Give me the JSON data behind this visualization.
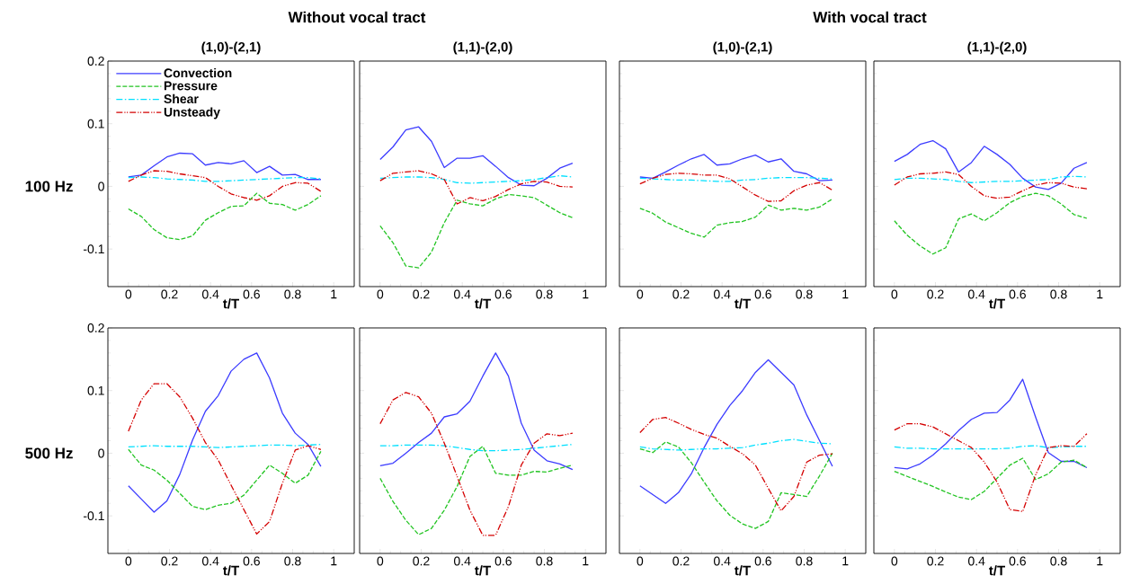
{
  "chart_data": [
    {
      "type": "line",
      "title": "(1,0)-(2,1)",
      "xlabel": "t/T",
      "ylabel": "100 Hz",
      "annotations": [
        "Without vocal tract"
      ],
      "legend": "top left",
      "xlim": [
        -0.1,
        1.1
      ],
      "ylim": [
        -0.16,
        0.2
      ],
      "xticks": [
        0,
        0.2,
        0.4,
        0.6,
        0.8,
        1
      ],
      "yticks": [
        -0.1,
        0,
        0.1,
        0.2
      ],
      "x": [
        0,
        0.0625,
        0.125,
        0.1875,
        0.25,
        0.3125,
        0.375,
        0.4375,
        0.5,
        0.5625,
        0.625,
        0.6875,
        0.75,
        0.8125,
        0.875,
        0.9375
      ],
      "series": [
        {
          "name": "Convection",
          "color": "#3c3cff",
          "line_style": "solid",
          "values": [
            0.015,
            0.018,
            0.033,
            0.047,
            0.053,
            0.052,
            0.034,
            0.038,
            0.036,
            0.041,
            0.022,
            0.032,
            0.018,
            0.019,
            0.011,
            0.011
          ]
        },
        {
          "name": "Pressure",
          "color": "#22c422",
          "line_style": "dashed",
          "values": [
            -0.036,
            -0.048,
            -0.069,
            -0.082,
            -0.085,
            -0.079,
            -0.054,
            -0.042,
            -0.032,
            -0.031,
            -0.011,
            -0.027,
            -0.029,
            -0.038,
            -0.029,
            -0.015
          ]
        },
        {
          "name": "Shear",
          "color": "#00e0ff",
          "line_style": "dashdot",
          "values": [
            0.014,
            0.015,
            0.014,
            0.012,
            0.011,
            0.01,
            0.008,
            0.008,
            0.009,
            0.01,
            0.011,
            0.012,
            0.013,
            0.014,
            0.014,
            0.012
          ]
        },
        {
          "name": "Unsteady",
          "color": "#d40000",
          "line_style": "dashdotdot",
          "values": [
            0.008,
            0.018,
            0.025,
            0.024,
            0.02,
            0.017,
            0.014,
            0.0,
            -0.012,
            -0.018,
            -0.022,
            -0.015,
            0.0,
            0.006,
            0.005,
            -0.008
          ]
        }
      ]
    },
    {
      "type": "line",
      "title": "(1,1)-(2,0)",
      "xlabel": "t/T",
      "tick_labels": "x",
      "xlim": [
        -0.1,
        1.1
      ],
      "ylim": [
        -0.16,
        0.2
      ],
      "xticks": [
        0,
        0.2,
        0.4,
        0.6,
        0.8,
        1
      ],
      "yticks": [
        -0.1,
        0,
        0.1,
        0.2
      ],
      "x": [
        0,
        0.0625,
        0.125,
        0.1875,
        0.25,
        0.3125,
        0.375,
        0.4375,
        0.5,
        0.5625,
        0.625,
        0.6875,
        0.75,
        0.8125,
        0.875,
        0.9375
      ],
      "series": [
        {
          "color": "#3c3cff",
          "line_style": "solid",
          "values": [
            0.043,
            0.063,
            0.09,
            0.095,
            0.072,
            0.03,
            0.045,
            0.045,
            0.049,
            0.032,
            0.014,
            0.002,
            0.001,
            0.013,
            0.029,
            0.037
          ]
        },
        {
          "color": "#22c422",
          "line_style": "dashed",
          "values": [
            -0.063,
            -0.09,
            -0.127,
            -0.13,
            -0.105,
            -0.058,
            -0.022,
            -0.028,
            -0.031,
            -0.02,
            -0.013,
            -0.015,
            -0.018,
            -0.03,
            -0.042,
            -0.05
          ]
        },
        {
          "color": "#00e0ff",
          "line_style": "dashdot",
          "values": [
            0.013,
            0.014,
            0.015,
            0.015,
            0.014,
            0.011,
            0.006,
            0.005,
            0.006,
            0.007,
            0.008,
            0.009,
            0.011,
            0.014,
            0.017,
            0.015
          ]
        },
        {
          "color": "#d40000",
          "line_style": "dashdotdot",
          "values": [
            0.009,
            0.021,
            0.023,
            0.025,
            0.02,
            0.011,
            -0.028,
            -0.018,
            -0.023,
            -0.016,
            -0.005,
            0.004,
            0.008,
            0.007,
            0.0,
            -0.001
          ]
        }
      ]
    },
    {
      "type": "line",
      "title": "(1,0)-(2,1)",
      "xlabel": "t/T",
      "annotations": [
        "With vocal tract"
      ],
      "tick_labels": "x",
      "xlim": [
        -0.1,
        1.1
      ],
      "ylim": [
        -0.16,
        0.2
      ],
      "xticks": [
        0,
        0.2,
        0.4,
        0.6,
        0.8,
        1
      ],
      "yticks": [
        -0.1,
        0,
        0.1,
        0.2
      ],
      "x": [
        0,
        0.0625,
        0.125,
        0.1875,
        0.25,
        0.3125,
        0.375,
        0.4375,
        0.5,
        0.5625,
        0.625,
        0.6875,
        0.75,
        0.8125,
        0.875,
        0.9375
      ],
      "series": [
        {
          "color": "#3c3cff",
          "line_style": "solid",
          "values": [
            0.015,
            0.013,
            0.023,
            0.034,
            0.044,
            0.051,
            0.034,
            0.036,
            0.044,
            0.05,
            0.039,
            0.044,
            0.024,
            0.02,
            0.009,
            0.01
          ]
        },
        {
          "color": "#22c422",
          "line_style": "dashed",
          "values": [
            -0.035,
            -0.043,
            -0.057,
            -0.066,
            -0.075,
            -0.081,
            -0.062,
            -0.058,
            -0.056,
            -0.049,
            -0.03,
            -0.038,
            -0.035,
            -0.038,
            -0.033,
            -0.02
          ]
        },
        {
          "color": "#00e0ff",
          "line_style": "dashdot",
          "values": [
            0.013,
            0.012,
            0.011,
            0.01,
            0.01,
            0.009,
            0.008,
            0.008,
            0.01,
            0.011,
            0.013,
            0.014,
            0.014,
            0.014,
            0.013,
            0.012
          ]
        },
        {
          "color": "#d40000",
          "line_style": "dashdotdot",
          "values": [
            0.004,
            0.013,
            0.019,
            0.021,
            0.02,
            0.018,
            0.018,
            0.012,
            -0.001,
            -0.014,
            -0.024,
            -0.023,
            -0.007,
            0.002,
            0.006,
            -0.006
          ]
        }
      ]
    },
    {
      "type": "line",
      "title": "(1,1)-(2,0)",
      "xlabel": "t/T",
      "tick_labels": "x",
      "xlim": [
        -0.1,
        1.1
      ],
      "ylim": [
        -0.16,
        0.2
      ],
      "xticks": [
        0,
        0.2,
        0.4,
        0.6,
        0.8,
        1
      ],
      "yticks": [
        -0.1,
        0,
        0.1,
        0.2
      ],
      "x": [
        0,
        0.0625,
        0.125,
        0.1875,
        0.25,
        0.3125,
        0.375,
        0.4375,
        0.5,
        0.5625,
        0.625,
        0.6875,
        0.75,
        0.8125,
        0.875,
        0.9375
      ],
      "series": [
        {
          "color": "#3c3cff",
          "line_style": "solid",
          "values": [
            0.04,
            0.051,
            0.067,
            0.073,
            0.06,
            0.023,
            0.038,
            0.064,
            0.051,
            0.035,
            0.013,
            -0.001,
            -0.005,
            0.005,
            0.029,
            0.038
          ]
        },
        {
          "color": "#22c422",
          "line_style": "dashed",
          "values": [
            -0.055,
            -0.078,
            -0.095,
            -0.108,
            -0.098,
            -0.052,
            -0.044,
            -0.055,
            -0.042,
            -0.026,
            -0.016,
            -0.011,
            -0.015,
            -0.028,
            -0.045,
            -0.051
          ]
        },
        {
          "color": "#00e0ff",
          "line_style": "dashdot",
          "values": [
            0.011,
            0.013,
            0.013,
            0.012,
            0.011,
            0.008,
            0.006,
            0.007,
            0.008,
            0.008,
            0.009,
            0.01,
            0.011,
            0.015,
            0.016,
            0.015
          ]
        },
        {
          "color": "#d40000",
          "line_style": "dashdotdot",
          "values": [
            0.002,
            0.015,
            0.02,
            0.021,
            0.023,
            0.019,
            0.0,
            -0.015,
            -0.019,
            -0.017,
            -0.007,
            0.002,
            0.006,
            0.005,
            -0.001,
            -0.004
          ]
        }
      ]
    },
    {
      "type": "line",
      "xlabel": "t/T",
      "ylabel": "500 Hz",
      "xlim": [
        -0.1,
        1.1
      ],
      "ylim": [
        -0.16,
        0.2
      ],
      "xticks": [
        0,
        0.2,
        0.4,
        0.6,
        0.8,
        1
      ],
      "yticks": [
        -0.1,
        0,
        0.1,
        0.2
      ],
      "x": [
        0,
        0.0625,
        0.125,
        0.1875,
        0.25,
        0.3125,
        0.375,
        0.4375,
        0.5,
        0.5625,
        0.625,
        0.6875,
        0.75,
        0.8125,
        0.875,
        0.9375
      ],
      "series": [
        {
          "color": "#3c3cff",
          "line_style": "solid",
          "values": [
            -0.052,
            -0.073,
            -0.094,
            -0.076,
            -0.034,
            0.021,
            0.067,
            0.092,
            0.131,
            0.15,
            0.16,
            0.12,
            0.064,
            0.032,
            0.014,
            -0.021
          ]
        },
        {
          "color": "#22c422",
          "line_style": "dashed",
          "values": [
            0.006,
            -0.019,
            -0.027,
            -0.043,
            -0.064,
            -0.085,
            -0.09,
            -0.083,
            -0.08,
            -0.067,
            -0.043,
            -0.019,
            -0.032,
            -0.048,
            -0.035,
            0.003
          ]
        },
        {
          "color": "#00e0ff",
          "line_style": "dashdot",
          "values": [
            0.01,
            0.011,
            0.012,
            0.011,
            0.011,
            0.011,
            0.01,
            0.009,
            0.01,
            0.011,
            0.012,
            0.013,
            0.013,
            0.012,
            0.013,
            0.014
          ]
        },
        {
          "color": "#d40000",
          "line_style": "dashdotdot",
          "values": [
            0.035,
            0.085,
            0.111,
            0.111,
            0.09,
            0.056,
            0.017,
            -0.011,
            -0.051,
            -0.09,
            -0.129,
            -0.109,
            -0.048,
            0.005,
            0.012,
            0.006
          ]
        }
      ]
    },
    {
      "type": "line",
      "xlabel": "t/T",
      "tick_labels": "x",
      "xlim": [
        -0.1,
        1.1
      ],
      "ylim": [
        -0.16,
        0.2
      ],
      "xticks": [
        0,
        0.2,
        0.4,
        0.6,
        0.8,
        1
      ],
      "yticks": [
        -0.1,
        0,
        0.1,
        0.2
      ],
      "x": [
        0,
        0.0625,
        0.125,
        0.1875,
        0.25,
        0.3125,
        0.375,
        0.4375,
        0.5,
        0.5625,
        0.625,
        0.6875,
        0.75,
        0.8125,
        0.875,
        0.9375
      ],
      "series": [
        {
          "color": "#3c3cff",
          "line_style": "solid",
          "values": [
            -0.02,
            -0.016,
            0.0,
            0.017,
            0.032,
            0.058,
            0.063,
            0.083,
            0.123,
            0.16,
            0.123,
            0.048,
            0.005,
            -0.012,
            -0.017,
            -0.026
          ]
        },
        {
          "color": "#22c422",
          "line_style": "dashed",
          "values": [
            -0.04,
            -0.077,
            -0.107,
            -0.13,
            -0.12,
            -0.091,
            -0.053,
            -0.005,
            0.011,
            -0.032,
            -0.035,
            -0.035,
            -0.029,
            -0.03,
            -0.024,
            -0.019
          ]
        },
        {
          "color": "#00e0ff",
          "line_style": "dashdot",
          "values": [
            0.012,
            0.012,
            0.013,
            0.013,
            0.013,
            0.012,
            0.009,
            0.006,
            0.004,
            0.004,
            0.005,
            0.006,
            0.008,
            0.01,
            0.012,
            0.014
          ]
        },
        {
          "color": "#d40000",
          "line_style": "dashdotdot",
          "values": [
            0.047,
            0.085,
            0.097,
            0.09,
            0.064,
            0.016,
            -0.037,
            -0.091,
            -0.131,
            -0.131,
            -0.085,
            -0.019,
            0.016,
            0.031,
            0.028,
            0.032
          ]
        }
      ]
    },
    {
      "type": "line",
      "xlabel": "t/T",
      "tick_labels": "x",
      "xlim": [
        -0.1,
        1.1
      ],
      "ylim": [
        -0.16,
        0.2
      ],
      "xticks": [
        0,
        0.2,
        0.4,
        0.6,
        0.8,
        1
      ],
      "yticks": [
        -0.1,
        0,
        0.1,
        0.2
      ],
      "x": [
        0,
        0.0625,
        0.125,
        0.1875,
        0.25,
        0.3125,
        0.375,
        0.4375,
        0.5,
        0.5625,
        0.625,
        0.6875,
        0.75,
        0.8125,
        0.875,
        0.9375
      ],
      "series": [
        {
          "color": "#3c3cff",
          "line_style": "solid",
          "values": [
            -0.052,
            -0.066,
            -0.08,
            -0.063,
            -0.033,
            0.009,
            0.046,
            0.076,
            0.1,
            0.129,
            0.149,
            0.129,
            0.109,
            0.061,
            0.02,
            -0.021
          ]
        },
        {
          "color": "#22c422",
          "line_style": "dashed",
          "values": [
            0.007,
            0.001,
            0.018,
            0.01,
            -0.015,
            -0.046,
            -0.076,
            -0.099,
            -0.113,
            -0.12,
            -0.109,
            -0.063,
            -0.066,
            -0.069,
            -0.036,
            0.0
          ]
        },
        {
          "color": "#00e0ff",
          "line_style": "dashdot",
          "values": [
            0.01,
            0.007,
            0.006,
            0.005,
            0.006,
            0.007,
            0.007,
            0.008,
            0.009,
            0.013,
            0.016,
            0.02,
            0.022,
            0.019,
            0.016,
            0.015
          ]
        },
        {
          "color": "#d40000",
          "line_style": "dashdotdot",
          "values": [
            0.033,
            0.054,
            0.057,
            0.048,
            0.038,
            0.03,
            0.024,
            0.011,
            -0.001,
            -0.019,
            -0.056,
            -0.092,
            -0.069,
            -0.014,
            -0.003,
            -0.001
          ]
        }
      ]
    },
    {
      "type": "line",
      "xlabel": "t/T",
      "tick_labels": "x",
      "xlim": [
        -0.1,
        1.1
      ],
      "ylim": [
        -0.16,
        0.2
      ],
      "xticks": [
        0,
        0.2,
        0.4,
        0.6,
        0.8,
        1
      ],
      "yticks": [
        -0.1,
        0,
        0.1,
        0.2
      ],
      "x": [
        0,
        0.0625,
        0.125,
        0.1875,
        0.25,
        0.3125,
        0.375,
        0.4375,
        0.5,
        0.5625,
        0.625,
        0.6875,
        0.75,
        0.8125,
        0.875,
        0.9375
      ],
      "series": [
        {
          "color": "#3c3cff",
          "line_style": "solid",
          "values": [
            -0.023,
            -0.025,
            -0.017,
            -0.003,
            0.015,
            0.036,
            0.054,
            0.064,
            0.065,
            0.085,
            0.118,
            0.058,
            0.001,
            -0.013,
            -0.013,
            -0.023
          ]
        },
        {
          "color": "#22c422",
          "line_style": "dashed",
          "values": [
            -0.029,
            -0.037,
            -0.045,
            -0.053,
            -0.062,
            -0.07,
            -0.074,
            -0.061,
            -0.04,
            -0.019,
            -0.008,
            -0.042,
            -0.033,
            -0.014,
            -0.011,
            -0.023
          ]
        },
        {
          "color": "#00e0ff",
          "line_style": "dashdot",
          "values": [
            0.01,
            0.008,
            0.008,
            0.007,
            0.007,
            0.007,
            0.007,
            0.007,
            0.007,
            0.008,
            0.011,
            0.012,
            0.009,
            0.01,
            0.011,
            0.011
          ]
        },
        {
          "color": "#d40000",
          "line_style": "dashdotdot",
          "values": [
            0.037,
            0.047,
            0.047,
            0.042,
            0.031,
            0.02,
            0.009,
            -0.014,
            -0.046,
            -0.09,
            -0.093,
            -0.035,
            0.009,
            0.012,
            0.011,
            0.031
          ]
        }
      ]
    }
  ]
}
